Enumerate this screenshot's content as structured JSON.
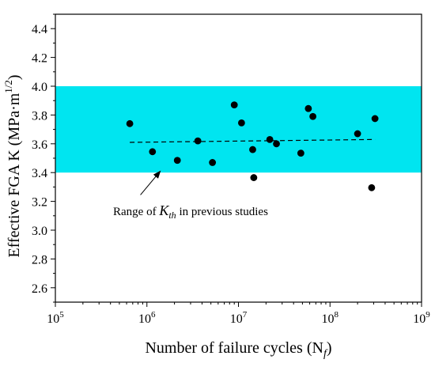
{
  "chart_data": {
    "type": "scatter",
    "title": "",
    "xlabel": {
      "main": "Number of failure cycles (N",
      "sub": "f",
      "tail": ")"
    },
    "ylabel": {
      "main": "Effective FGA K (MPa·m",
      "sup": "1/2",
      "tail": ")"
    },
    "x_scale": "log",
    "xlim": [
      100000,
      1000000000
    ],
    "ylim": [
      2.5,
      4.5
    ],
    "x_ticks": [
      {
        "value": 100000,
        "base": "10",
        "exp": "5"
      },
      {
        "value": 1000000,
        "base": "10",
        "exp": "6"
      },
      {
        "value": 10000000,
        "base": "10",
        "exp": "7"
      },
      {
        "value": 100000000,
        "base": "10",
        "exp": "8"
      },
      {
        "value": 1000000000,
        "base": "10",
        "exp": "9"
      }
    ],
    "y_ticks": [
      "2.6",
      "2.8",
      "3.0",
      "3.2",
      "3.4",
      "3.6",
      "3.8",
      "4.0",
      "4.2",
      "4.4"
    ],
    "band": {
      "y_range": [
        3.4,
        4.0
      ],
      "color": "#00e5f0"
    },
    "points": [
      {
        "x": 650000,
        "y": 3.74
      },
      {
        "x": 1150000,
        "y": 3.545
      },
      {
        "x": 2150000,
        "y": 3.485
      },
      {
        "x": 3600000,
        "y": 3.62
      },
      {
        "x": 5200000,
        "y": 3.47
      },
      {
        "x": 9000000,
        "y": 3.87
      },
      {
        "x": 10800000,
        "y": 3.745
      },
      {
        "x": 14300000,
        "y": 3.56
      },
      {
        "x": 14700000,
        "y": 3.365
      },
      {
        "x": 22000000,
        "y": 3.63
      },
      {
        "x": 26000000,
        "y": 3.6
      },
      {
        "x": 48000000,
        "y": 3.535
      },
      {
        "x": 58000000,
        "y": 3.845
      },
      {
        "x": 65000000,
        "y": 3.79
      },
      {
        "x": 200000000,
        "y": 3.67
      },
      {
        "x": 285000000,
        "y": 3.295
      },
      {
        "x": 310000000,
        "y": 3.775
      }
    ],
    "trend_line": {
      "x": [
        650000,
        310000000
      ],
      "y": [
        3.61,
        3.63
      ],
      "style": "dashed"
    },
    "annotation": {
      "text_before": "Range of ",
      "italic": "K",
      "italic_sub": "th",
      "text_after": " in previous studies",
      "arrow_from": {
        "x": 850000,
        "y": 3.245
      },
      "arrow_to": {
        "x": 1400000,
        "y": 3.41
      }
    },
    "marker_color": "#000000",
    "grid": false,
    "legend": "none"
  }
}
